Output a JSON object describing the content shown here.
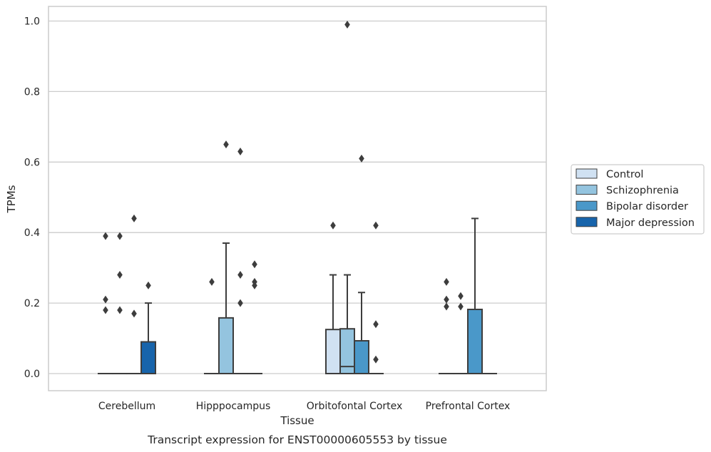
{
  "chart_data": {
    "type": "box",
    "caption": "Transcript expression for ENST00000605553 by tissue",
    "xlabel": "Tissue",
    "ylabel": "TPMs",
    "ylim": [
      -0.05,
      1.04
    ],
    "yticks": [
      0.0,
      0.2,
      0.4,
      0.6,
      0.8,
      1.0
    ],
    "ytick_labels": [
      "0.0",
      "0.2",
      "0.4",
      "0.6",
      "0.8",
      "1.0"
    ],
    "grid": "horizontal",
    "legend_position": "right",
    "categories": [
      "Cerebellum",
      "Hipppocampus",
      "Orbitofontal Cortex",
      "Prefrontal Cortex"
    ],
    "series": [
      {
        "name": "Control",
        "color": "#d0e1f2",
        "boxes": [
          {
            "q1": 0,
            "median": 0,
            "q3": 0,
            "whisker_low": 0,
            "whisker_high": 0,
            "outliers": [
              0.39,
              0.21,
              0.18
            ]
          },
          {
            "q1": 0,
            "median": 0,
            "q3": 0,
            "whisker_low": 0,
            "whisker_high": 0,
            "outliers": [
              0.26
            ]
          },
          {
            "q1": 0,
            "median": 0,
            "q3": 0.125,
            "whisker_low": 0,
            "whisker_high": 0.28,
            "outliers": [
              0.42
            ]
          },
          {
            "q1": 0,
            "median": 0,
            "q3": 0,
            "whisker_low": 0,
            "whisker_high": 0,
            "outliers": [
              0.26,
              0.21,
              0.19
            ]
          }
        ]
      },
      {
        "name": "Schizophrenia",
        "color": "#94c4df",
        "boxes": [
          {
            "q1": 0,
            "median": 0,
            "q3": 0,
            "whisker_low": 0,
            "whisker_high": 0,
            "outliers": [
              0.39,
              0.28,
              0.18
            ]
          },
          {
            "q1": 0,
            "median": 0,
            "q3": 0.158,
            "whisker_low": 0,
            "whisker_high": 0.37,
            "outliers": [
              0.65
            ]
          },
          {
            "q1": 0,
            "median": 0.02,
            "q3": 0.127,
            "whisker_low": 0,
            "whisker_high": 0.28,
            "outliers": [
              0.99
            ]
          },
          {
            "q1": 0,
            "median": 0,
            "q3": 0,
            "whisker_low": 0,
            "whisker_high": 0,
            "outliers": [
              0.22,
              0.19
            ]
          }
        ]
      },
      {
        "name": "Bipolar disorder",
        "color": "#4a98c9",
        "boxes": [
          {
            "q1": 0,
            "median": 0,
            "q3": 0,
            "whisker_low": 0,
            "whisker_high": 0,
            "outliers": [
              0.44,
              0.17
            ]
          },
          {
            "q1": 0,
            "median": 0,
            "q3": 0,
            "whisker_low": 0,
            "whisker_high": 0,
            "outliers": [
              0.63,
              0.28,
              0.2
            ]
          },
          {
            "q1": 0,
            "median": 0,
            "q3": 0.093,
            "whisker_low": 0,
            "whisker_high": 0.23,
            "outliers": [
              0.61
            ]
          },
          {
            "q1": 0,
            "median": 0,
            "q3": 0.182,
            "whisker_low": 0,
            "whisker_high": 0.44,
            "outliers": []
          }
        ]
      },
      {
        "name": "Major depression",
        "color": "#1764ab",
        "boxes": [
          {
            "q1": 0,
            "median": 0,
            "q3": 0.09,
            "whisker_low": 0,
            "whisker_high": 0.2,
            "outliers": [
              0.25
            ]
          },
          {
            "q1": 0,
            "median": 0,
            "q3": 0,
            "whisker_low": 0,
            "whisker_high": 0,
            "outliers": [
              0.31,
              0.26,
              0.25
            ]
          },
          {
            "q1": 0,
            "median": 0,
            "q3": 0,
            "whisker_low": 0,
            "whisker_high": 0,
            "outliers": [
              0.42,
              0.14,
              0.04
            ]
          },
          {
            "q1": 0,
            "median": 0,
            "q3": 0,
            "whisker_low": 0,
            "whisker_high": 0,
            "outliers": []
          }
        ]
      }
    ]
  },
  "colors": {
    "grid": "#cccccc",
    "frame": "#cccccc",
    "box_edge": "#3d3d3d",
    "text": "#262626"
  }
}
